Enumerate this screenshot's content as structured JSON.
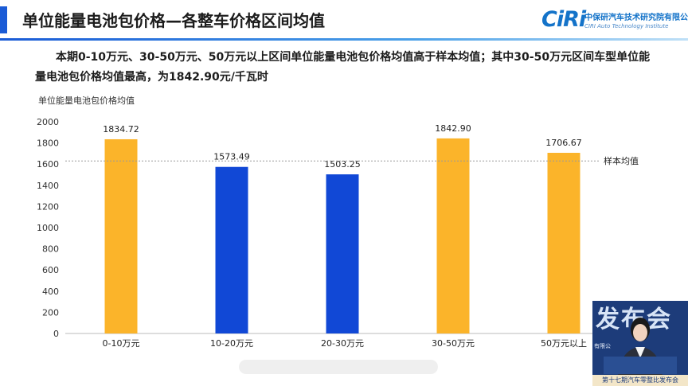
{
  "header": {
    "title": "单位能量电池包价格—各整车价格区间均值",
    "logo_mark": "CiRi",
    "logo_name": "中保研汽车技术研究院有限公司",
    "logo_sub": "CIRI Auto Technology Institute"
  },
  "summary": "本期0-10万元、30-50万元、50万元以上区间单位能量电池包价格均值高于样本均值；其中30-50万元区间车型单位能量电池包价格均值最高，为1842.90元/千瓦时",
  "inset": {
    "bg_text": "发布会",
    "side_text": "有限公",
    "caption": "第十七期汽车零整比发布会"
  },
  "colors": {
    "accent": "#1a5bd6",
    "above_avg": "#fbb42a",
    "below_avg": "#1148d6",
    "reference_line": "#9a9a9a"
  },
  "chart_data": {
    "type": "bar",
    "ylabel": "单位能量电池包价格均值",
    "categories": [
      "0-10万元",
      "10-20万元",
      "20-30万元",
      "30-50万元",
      "50万元以上"
    ],
    "values": [
      1834.72,
      1573.49,
      1503.25,
      1842.9,
      1706.67
    ],
    "value_labels": [
      "1834.72",
      "1573.49",
      "1503.25",
      "1842.90",
      "1706.67"
    ],
    "bar_colors": [
      "#fbb42a",
      "#1148d6",
      "#1148d6",
      "#fbb42a",
      "#fbb42a"
    ],
    "ylim": [
      0,
      2000
    ],
    "yticks": [
      0,
      200,
      400,
      600,
      800,
      1000,
      1200,
      1400,
      1600,
      1800,
      2000
    ],
    "reference_line": {
      "label": "样本均值",
      "value": 1630
    },
    "grid": false
  }
}
